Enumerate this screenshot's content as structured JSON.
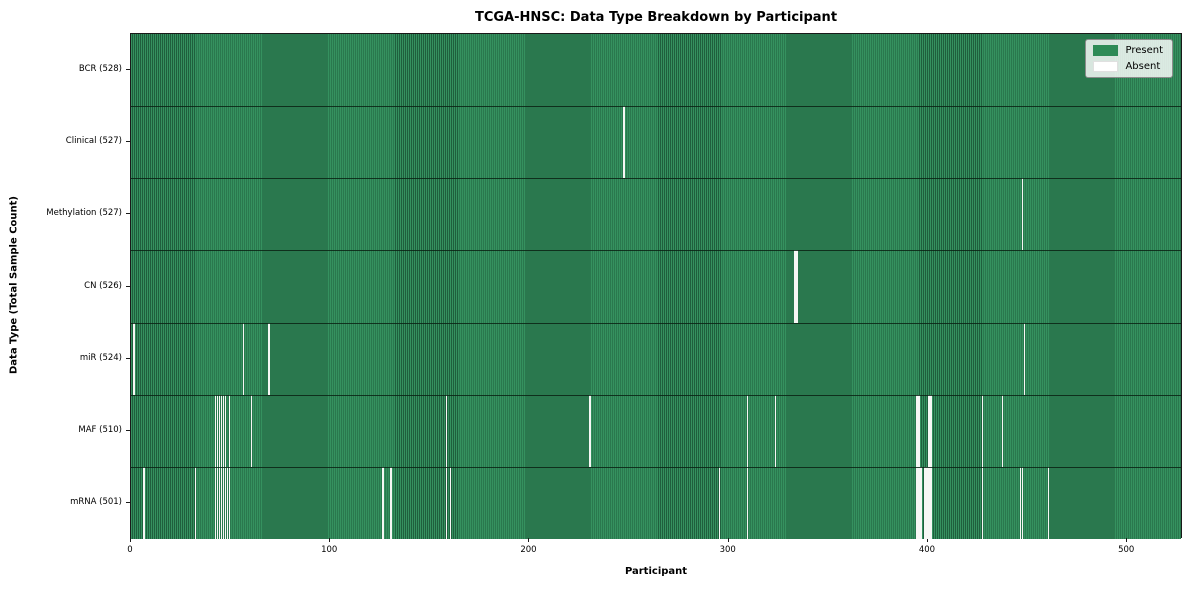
{
  "title": "TCGA-HNSC: Data Type Breakdown by Participant",
  "axes": {
    "xlabel": "Participant",
    "ylabel": "Data Type (Total Sample Count)",
    "x_ticks": [
      0,
      100,
      200,
      300,
      400,
      500
    ]
  },
  "legend": {
    "present_label": "Present",
    "absent_label": "Absent"
  },
  "colors": {
    "present": "#2E8B57",
    "present_stripe_dark": "#1f5f3d",
    "absent": "#f7f7f5",
    "legend_bg": "rgba(255,255,255,0.82)"
  },
  "chart_data": {
    "type": "heatmap",
    "title": "TCGA-HNSC: Data Type Breakdown by Participant",
    "xlabel": "Participant",
    "ylabel": "Data Type (Total Sample Count)",
    "xlim": [
      0,
      528
    ],
    "x_ticks": [
      0,
      100,
      200,
      300,
      400,
      500
    ],
    "legend_entries": [
      "Present",
      "Absent"
    ],
    "legend_position": "upper right",
    "grid": false,
    "total_participants": 528,
    "rows": [
      {
        "label": "BCR (528)",
        "data_type": "BCR",
        "present_count": 528,
        "absent_participants": []
      },
      {
        "label": "Clinical (527)",
        "data_type": "Clinical",
        "present_count": 527,
        "absent_participants": [
          247
        ]
      },
      {
        "label": "Methylation (527)",
        "data_type": "Methylation",
        "present_count": 527,
        "absent_participants": [
          447
        ]
      },
      {
        "label": "CN (526)",
        "data_type": "CN",
        "present_count": 526,
        "absent_participants": [
          333,
          334
        ]
      },
      {
        "label": "miR (524)",
        "data_type": "miR",
        "present_count": 524,
        "absent_participants": [
          1,
          56,
          69,
          448
        ]
      },
      {
        "label": "MAF (510)",
        "data_type": "MAF",
        "present_count": 510,
        "absent_participants": [
          42,
          43,
          44,
          45,
          46,
          47,
          49,
          60,
          158,
          230,
          309,
          323,
          394,
          395,
          400,
          401,
          427,
          437
        ]
      },
      {
        "label": "mRNA (501)",
        "data_type": "mRNA",
        "present_count": 501,
        "absent_participants": [
          6,
          32,
          42,
          43,
          44,
          45,
          46,
          47,
          48,
          49,
          126,
          130,
          158,
          160,
          295,
          309,
          394,
          395,
          396,
          398,
          399,
          400,
          401,
          427,
          446,
          447,
          460
        ]
      }
    ]
  }
}
